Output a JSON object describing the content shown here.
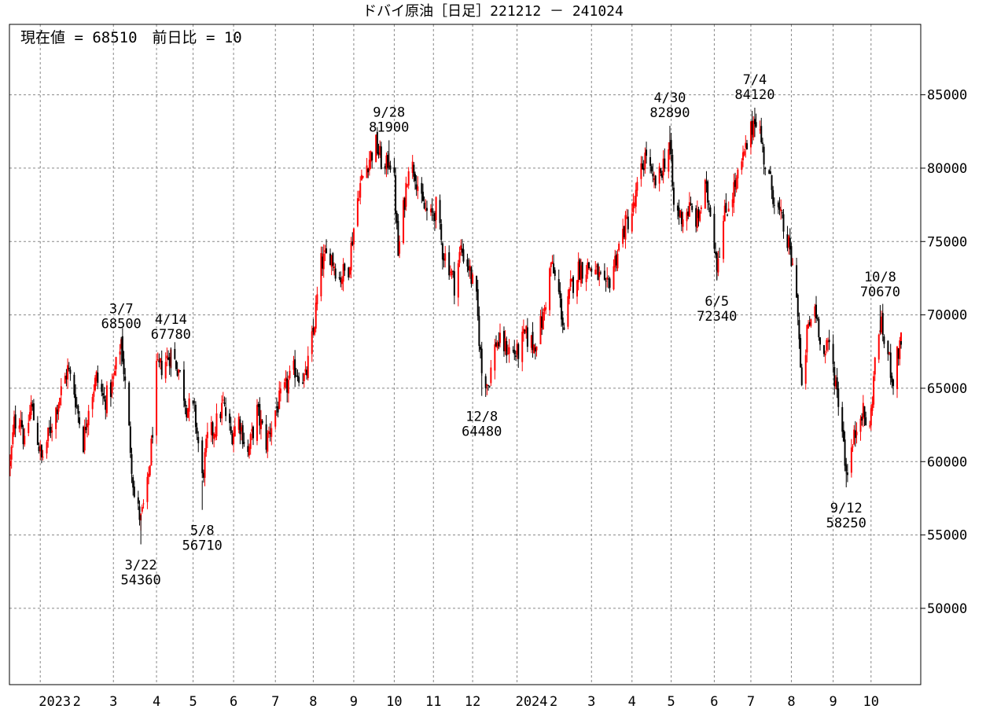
{
  "chart_data": {
    "type": "candlestick",
    "title": "ドバイ原油［日足］221212 － 241024",
    "current_label": "現在値 = 68510　前日比 = 10",
    "ylim": [
      44800,
      89800
    ],
    "yticks": [
      {
        "value": 50000,
        "label": "50000"
      },
      {
        "value": 55000,
        "label": "55000"
      },
      {
        "value": 60000,
        "label": "60000"
      },
      {
        "value": 65000,
        "label": "65000"
      },
      {
        "value": 70000,
        "label": "70000"
      },
      {
        "value": 75000,
        "label": "75000"
      },
      {
        "value": 80000,
        "label": "80000"
      },
      {
        "value": 85000,
        "label": "85000"
      }
    ],
    "xlim": [
      "2022-12-12",
      "2024-10-24"
    ],
    "month_ticks": [
      {
        "date": "2023-01-04",
        "label": "2023",
        "grid": true
      },
      {
        "date": "2023-02-01",
        "label": "2",
        "grid": false
      },
      {
        "date": "2023-03-01",
        "label": "3",
        "grid": true
      },
      {
        "date": "2023-04-03",
        "label": "4",
        "grid": true
      },
      {
        "date": "2023-05-01",
        "label": "5",
        "grid": true
      },
      {
        "date": "2023-06-01",
        "label": "6",
        "grid": true
      },
      {
        "date": "2023-07-03",
        "label": "7",
        "grid": true
      },
      {
        "date": "2023-08-01",
        "label": "8",
        "grid": true
      },
      {
        "date": "2023-09-01",
        "label": "9",
        "grid": true
      },
      {
        "date": "2023-10-02",
        "label": "10",
        "grid": true
      },
      {
        "date": "2023-11-01",
        "label": "11",
        "grid": true
      },
      {
        "date": "2023-12-01",
        "label": "12",
        "grid": true
      },
      {
        "date": "2024-01-04",
        "label": "2024",
        "grid": true
      },
      {
        "date": "2024-02-01",
        "label": "2",
        "grid": false
      },
      {
        "date": "2024-03-01",
        "label": "3",
        "grid": true
      },
      {
        "date": "2024-04-01",
        "label": "4",
        "grid": true
      },
      {
        "date": "2024-05-01",
        "label": "5",
        "grid": true
      },
      {
        "date": "2024-06-03",
        "label": "6",
        "grid": true
      },
      {
        "date": "2024-07-01",
        "label": "7",
        "grid": true
      },
      {
        "date": "2024-08-01",
        "label": "8",
        "grid": true
      },
      {
        "date": "2024-09-02",
        "label": "9",
        "grid": true
      },
      {
        "date": "2024-10-01",
        "label": "10",
        "grid": true
      }
    ],
    "price_path": [
      [
        "2022-12-12",
        59800
      ],
      [
        "2022-12-15",
        62600
      ],
      [
        "2022-12-20",
        63200
      ],
      [
        "2022-12-23",
        61000
      ],
      [
        "2022-12-28",
        63900
      ],
      [
        "2023-01-05",
        60100
      ],
      [
        "2023-01-12",
        62300
      ],
      [
        "2023-01-18",
        64200
      ],
      [
        "2023-01-25",
        66300
      ],
      [
        "2023-01-30",
        64800
      ],
      [
        "2023-02-06",
        61300
      ],
      [
        "2023-02-10",
        63900
      ],
      [
        "2023-02-16",
        65700
      ],
      [
        "2023-02-22",
        64100
      ],
      [
        "2023-02-28",
        65100
      ],
      [
        "2023-03-07",
        68300
      ],
      [
        "2023-03-10",
        65200
      ],
      [
        "2023-03-14",
        61000
      ],
      [
        "2023-03-17",
        57600
      ],
      [
        "2023-03-22",
        56000
      ],
      [
        "2023-03-27",
        58200
      ],
      [
        "2023-03-30",
        61000
      ],
      [
        "2023-04-03",
        66100
      ],
      [
        "2023-04-07",
        66500
      ],
      [
        "2023-04-14",
        67400
      ],
      [
        "2023-04-20",
        66300
      ],
      [
        "2023-04-26",
        63800
      ],
      [
        "2023-05-02",
        63400
      ],
      [
        "2023-05-05",
        61200
      ],
      [
        "2023-05-08",
        58800
      ],
      [
        "2023-05-12",
        61500
      ],
      [
        "2023-05-18",
        62400
      ],
      [
        "2023-05-24",
        63900
      ],
      [
        "2023-05-30",
        61800
      ],
      [
        "2023-06-05",
        62900
      ],
      [
        "2023-06-12",
        60500
      ],
      [
        "2023-06-19",
        63400
      ],
      [
        "2023-06-26",
        61300
      ],
      [
        "2023-07-03",
        63500
      ],
      [
        "2023-07-10",
        64800
      ],
      [
        "2023-07-18",
        66300
      ],
      [
        "2023-07-26",
        65600
      ],
      [
        "2023-08-01",
        68800
      ],
      [
        "2023-08-07",
        73500
      ],
      [
        "2023-08-14",
        74200
      ],
      [
        "2023-08-21",
        72500
      ],
      [
        "2023-08-28",
        73300
      ],
      [
        "2023-09-05",
        78600
      ],
      [
        "2023-09-12",
        80500
      ],
      [
        "2023-09-18",
        81600
      ],
      [
        "2023-09-25",
        79700
      ],
      [
        "2023-09-28",
        80900
      ],
      [
        "2023-10-02",
        79000
      ],
      [
        "2023-10-05",
        74100
      ],
      [
        "2023-10-10",
        77900
      ],
      [
        "2023-10-13",
        80400
      ],
      [
        "2023-10-18",
        79800
      ],
      [
        "2023-10-23",
        77500
      ],
      [
        "2023-10-30",
        76600
      ],
      [
        "2023-11-03",
        77300
      ],
      [
        "2023-11-08",
        74400
      ],
      [
        "2023-11-13",
        73400
      ],
      [
        "2023-11-17",
        72100
      ],
      [
        "2023-11-22",
        74500
      ],
      [
        "2023-11-28",
        73300
      ],
      [
        "2023-12-04",
        70900
      ],
      [
        "2023-12-08",
        66100
      ],
      [
        "2023-12-13",
        65300
      ],
      [
        "2023-12-19",
        68200
      ],
      [
        "2023-12-26",
        67800
      ],
      [
        "2024-01-04",
        67300
      ],
      [
        "2024-01-10",
        68600
      ],
      [
        "2024-01-17",
        67900
      ],
      [
        "2024-01-24",
        69800
      ],
      [
        "2024-01-30",
        73500
      ],
      [
        "2024-02-05",
        71400
      ],
      [
        "2024-02-09",
        69000
      ],
      [
        "2024-02-14",
        71800
      ],
      [
        "2024-02-20",
        73100
      ],
      [
        "2024-02-28",
        73300
      ],
      [
        "2024-03-06",
        72700
      ],
      [
        "2024-03-12",
        71500
      ],
      [
        "2024-03-18",
        73400
      ],
      [
        "2024-03-26",
        75900
      ],
      [
        "2024-04-02",
        77200
      ],
      [
        "2024-04-08",
        79800
      ],
      [
        "2024-04-12",
        81100
      ],
      [
        "2024-04-17",
        78800
      ],
      [
        "2024-04-22",
        79400
      ],
      [
        "2024-04-26",
        80600
      ],
      [
        "2024-04-30",
        81600
      ],
      [
        "2024-05-03",
        77300
      ],
      [
        "2024-05-09",
        76700
      ],
      [
        "2024-05-15",
        77200
      ],
      [
        "2024-05-21",
        76400
      ],
      [
        "2024-05-27",
        78600
      ],
      [
        "2024-05-31",
        77300
      ],
      [
        "2024-06-05",
        73600
      ],
      [
        "2024-06-11",
        76800
      ],
      [
        "2024-06-17",
        78400
      ],
      [
        "2024-06-21",
        79300
      ],
      [
        "2024-06-27",
        81200
      ],
      [
        "2024-07-02",
        82800
      ],
      [
        "2024-07-04",
        83700
      ],
      [
        "2024-07-08",
        82400
      ],
      [
        "2024-07-12",
        80200
      ],
      [
        "2024-07-18",
        78300
      ],
      [
        "2024-07-24",
        76500
      ],
      [
        "2024-07-30",
        74600
      ],
      [
        "2024-08-05",
        71800
      ],
      [
        "2024-08-09",
        64500
      ],
      [
        "2024-08-13",
        68700
      ],
      [
        "2024-08-19",
        70600
      ],
      [
        "2024-08-26",
        67200
      ],
      [
        "2024-08-30",
        68000
      ],
      [
        "2024-09-04",
        65400
      ],
      [
        "2024-09-09",
        62400
      ],
      [
        "2024-09-12",
        59300
      ],
      [
        "2024-09-17",
        61100
      ],
      [
        "2024-09-23",
        63700
      ],
      [
        "2024-09-30",
        62100
      ],
      [
        "2024-10-03",
        65800
      ],
      [
        "2024-10-08",
        69500
      ],
      [
        "2024-10-14",
        67200
      ],
      [
        "2024-10-18",
        65600
      ],
      [
        "2024-10-24",
        68510
      ]
    ],
    "annotations": [
      {
        "date": "2023-03-07",
        "label1": "3/7",
        "label2": "68500",
        "value": 68500,
        "position": "above"
      },
      {
        "date": "2023-03-22",
        "label1": "3/22",
        "label2": "54360",
        "value": 54360,
        "position": "below"
      },
      {
        "date": "2023-04-14",
        "label1": "4/14",
        "label2": "67780",
        "value": 67780,
        "position": "above"
      },
      {
        "date": "2023-05-08",
        "label1": "5/8",
        "label2": "56710",
        "value": 56710,
        "position": "below"
      },
      {
        "date": "2023-09-28",
        "label1": "9/28",
        "label2": "81900",
        "value": 81900,
        "position": "above"
      },
      {
        "date": "2023-12-08",
        "label1": "12/8",
        "label2": "64480",
        "value": 64480,
        "position": "below"
      },
      {
        "date": "2024-04-30",
        "label1": "4/30",
        "label2": "82890",
        "value": 82890,
        "position": "above"
      },
      {
        "date": "2024-06-05",
        "label1": "6/5",
        "label2": "72340",
        "value": 72340,
        "position": "below"
      },
      {
        "date": "2024-07-04",
        "label1": "7/4",
        "label2": "84120",
        "value": 84120,
        "position": "above"
      },
      {
        "date": "2024-09-12",
        "label1": "9/12",
        "label2": "58250",
        "value": 58250,
        "position": "below"
      },
      {
        "date": "2024-10-08",
        "label1": "10/8",
        "label2": "70670",
        "value": 70670,
        "position": "above"
      }
    ],
    "colors": {
      "up": "#ff0000",
      "down": "#000000",
      "grid": "#888888",
      "frame": "#000000",
      "background": "#ffffff"
    },
    "grid": true
  }
}
